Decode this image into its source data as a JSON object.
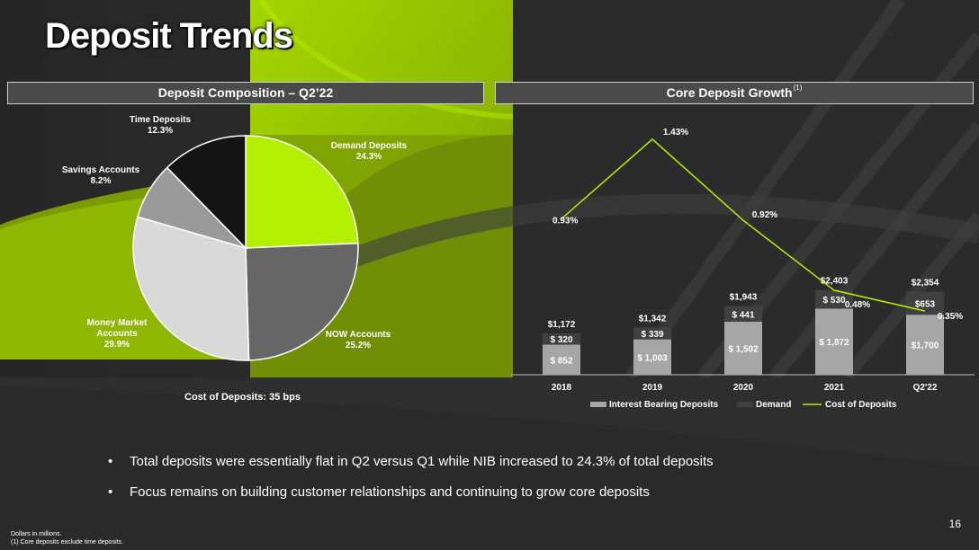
{
  "title": "Deposit Trends",
  "left_panel": {
    "header": "Deposit Composition – Q2’22",
    "note": "Cost of Deposits: 35 bps"
  },
  "right_panel": {
    "header": "Core Deposit Growth",
    "header_note": "(1)"
  },
  "colors": {
    "accent": "#b3f000",
    "dark_gray": "#666666",
    "light_gray": "#d9d9d9",
    "mid_gray": "#9a9a9a",
    "black": "#141414",
    "bar_light": "#a6a6a6",
    "bar_dark": "#404040",
    "line": "#b3f000"
  },
  "chart_data": [
    {
      "type": "pie",
      "categories": [
        "Demand Deposits",
        "NOW Accounts",
        "Money Market Accounts",
        "Savings Accounts",
        "Time Deposits"
      ],
      "values": [
        24.3,
        25.2,
        29.9,
        8.2,
        12.3
      ],
      "labels": [
        "24.3%",
        "25.2%",
        "29.9%",
        "8.2%",
        "12.3%"
      ],
      "name_lines": [
        [
          "Demand Deposits"
        ],
        [
          "NOW Accounts"
        ],
        [
          "Money Market",
          "Accounts"
        ],
        [
          "Savings Accounts"
        ],
        [
          "Time Deposits"
        ]
      ],
      "colors": [
        "#b3f000",
        "#666666",
        "#d9d9d9",
        "#9a9a9a",
        "#141414"
      ]
    },
    {
      "type": "bar",
      "stacked": true,
      "categories": [
        "2018",
        "2019",
        "2020",
        "2021",
        "Q2'22"
      ],
      "series": [
        {
          "name": "Interest Bearing Deposits",
          "values": [
            852,
            1003,
            1502,
            1872,
            1700
          ],
          "labels": [
            "$ 852",
            "$ 1,003",
            "$ 1,502",
            "$ 1,872",
            "$1,700"
          ]
        },
        {
          "name": "Demand",
          "values": [
            320,
            339,
            441,
            530,
            653
          ],
          "labels": [
            "$ 320",
            "$ 339",
            "$ 441",
            "$ 530",
            "$653"
          ]
        }
      ],
      "totals": [
        "$1,172",
        "$1,342",
        "$1,943",
        "$2,403",
        "$2,354"
      ],
      "line_series": {
        "name": "Cost of Deposits",
        "values": [
          0.93,
          1.43,
          0.92,
          0.48,
          0.35
        ],
        "labels": [
          "0.93%",
          "1.43%",
          "0.92%",
          "0.48%",
          "0.35%"
        ]
      }
    }
  ],
  "bullets": [
    "Total deposits were essentially flat in Q2 versus Q1 while NIB increased to 24.3% of total deposits",
    "Focus remains on building customer relationships and continuing to grow core deposits"
  ],
  "bullet_symbol": "•",
  "footnotes": [
    "Dollars in millions.",
    "(1) Core deposits exclude time deposits."
  ],
  "page_number": "16"
}
